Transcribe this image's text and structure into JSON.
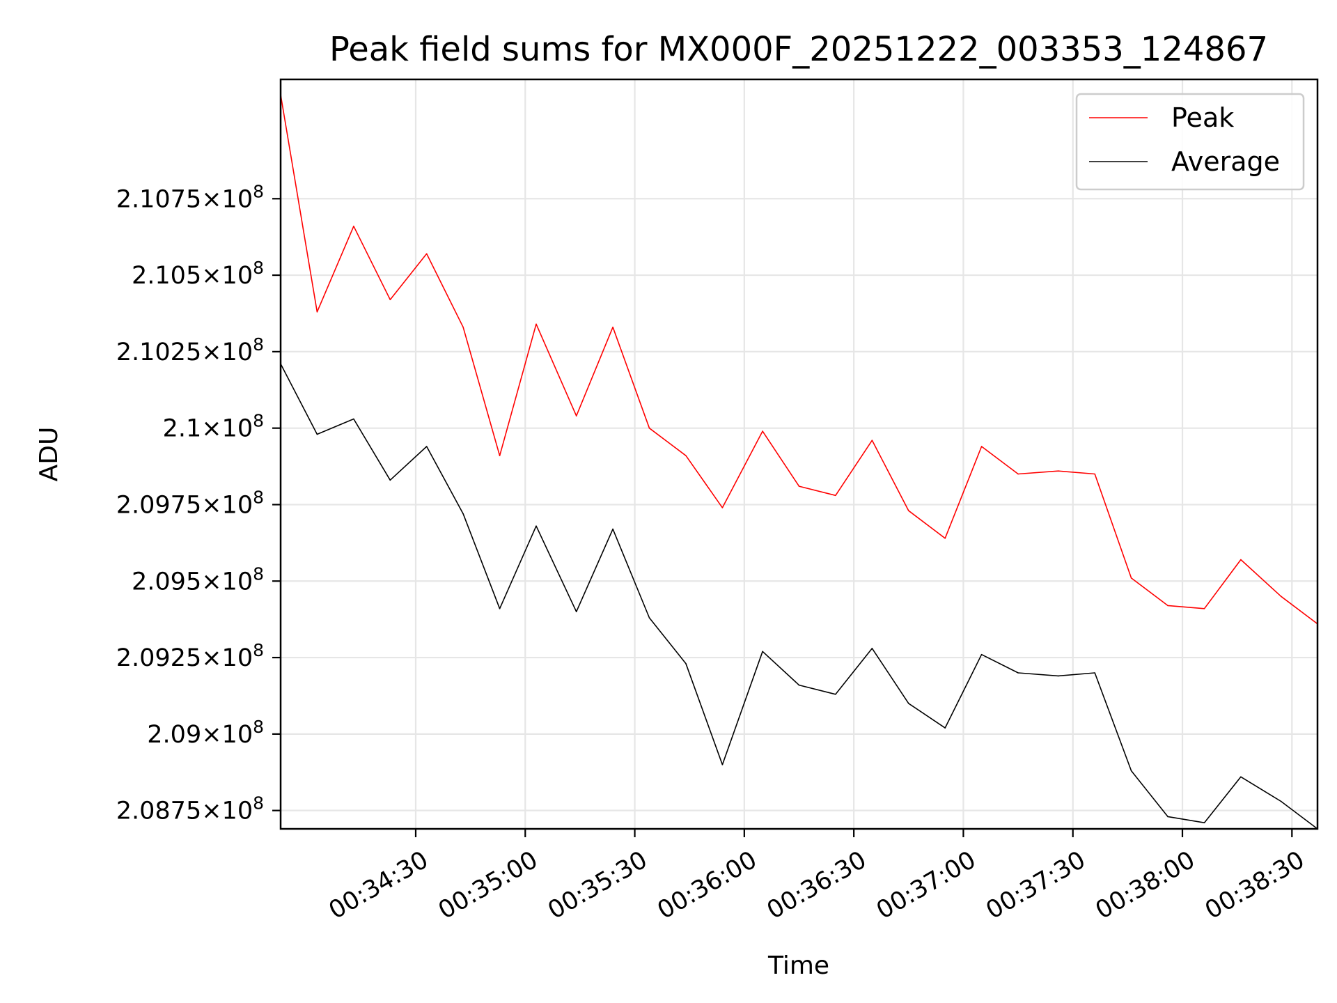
{
  "chart_data": {
    "type": "line",
    "title": "Peak field sums for MX000F_20251222_003353_124867",
    "xlabel": "Time",
    "ylabel": "ADU",
    "x_range": [
      "00:33:53",
      "00:38:37"
    ],
    "y_range": [
      208690000,
      211140000
    ],
    "grid": true,
    "legend_position": "top-right",
    "x_ticks": [
      {
        "time": "00:34:30",
        "label": "00:34:30"
      },
      {
        "time": "00:35:00",
        "label": "00:35:00"
      },
      {
        "time": "00:35:30",
        "label": "00:35:30"
      },
      {
        "time": "00:36:00",
        "label": "00:36:00"
      },
      {
        "time": "00:36:30",
        "label": "00:36:30"
      },
      {
        "time": "00:37:00",
        "label": "00:37:00"
      },
      {
        "time": "00:37:30",
        "label": "00:37:30"
      },
      {
        "time": "00:38:00",
        "label": "00:38:00"
      },
      {
        "time": "00:38:30",
        "label": "00:38:30"
      }
    ],
    "y_ticks": [
      {
        "value": 208750000,
        "mantissa": "2.0875",
        "exp": "8"
      },
      {
        "value": 209000000,
        "mantissa": "2.09",
        "exp": "8"
      },
      {
        "value": 209250000,
        "mantissa": "2.0925",
        "exp": "8"
      },
      {
        "value": 209500000,
        "mantissa": "2.095",
        "exp": "8"
      },
      {
        "value": 209750000,
        "mantissa": "2.0975",
        "exp": "8"
      },
      {
        "value": 210000000,
        "mantissa": "2.1",
        "exp": "8"
      },
      {
        "value": 210250000,
        "mantissa": "2.1025",
        "exp": "8"
      },
      {
        "value": 210500000,
        "mantissa": "2.105",
        "exp": "8"
      },
      {
        "value": 210750000,
        "mantissa": "2.1075",
        "exp": "8"
      }
    ],
    "x": [
      "00:33:53",
      "00:34:03",
      "00:34:13",
      "00:34:23",
      "00:34:33",
      "00:34:43",
      "00:34:53",
      "00:35:03",
      "00:35:14",
      "00:35:24",
      "00:35:34",
      "00:35:44",
      "00:35:54",
      "00:36:05",
      "00:36:15",
      "00:36:25",
      "00:36:35",
      "00:36:45",
      "00:36:55",
      "00:37:05",
      "00:37:15",
      "00:37:26",
      "00:37:36",
      "00:37:46",
      "00:37:56",
      "00:38:06",
      "00:38:16",
      "00:38:27",
      "00:38:37"
    ],
    "series": [
      {
        "name": "Peak",
        "color": "#ff0000",
        "values": [
          211090000,
          210380000,
          210660000,
          210420000,
          210570000,
          210330000,
          209910000,
          210340000,
          210040000,
          210330000,
          210000000,
          209910000,
          209740000,
          209990000,
          209810000,
          209780000,
          209960000,
          209730000,
          209640000,
          209940000,
          209850000,
          209860000,
          209850000,
          209510000,
          209420000,
          209410000,
          209570000,
          209450000,
          209360000
        ],
        "_": "Peak series"
      },
      {
        "name": "Average",
        "color": "#000000",
        "values": [
          210210000,
          209980000,
          210030000,
          209830000,
          209940000,
          209720000,
          209410000,
          209680000,
          209400000,
          209670000,
          209380000,
          209230000,
          208900000,
          209270000,
          209160000,
          209130000,
          209280000,
          209100000,
          209020000,
          209260000,
          209200000,
          209190000,
          209200000,
          208880000,
          208730000,
          208710000,
          208860000,
          208780000,
          208690000
        ]
      }
    ]
  }
}
